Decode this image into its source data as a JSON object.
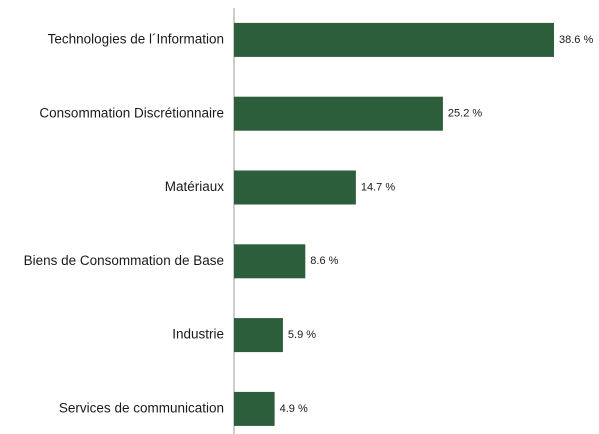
{
  "chart_data": {
    "type": "bar",
    "orientation": "horizontal",
    "categories": [
      "Technologies de l´Information",
      "Consommation Discrétionnaire",
      "Matériaux",
      "Biens de Consommation de Base",
      "Industrie",
      "Services de communication"
    ],
    "values": [
      38.6,
      25.2,
      14.7,
      8.6,
      5.9,
      4.9
    ],
    "value_labels": [
      "38.6 %",
      "25.2 %",
      "14.7 %",
      "8.6 %",
      "5.9 %",
      "4.9 %"
    ],
    "color": "#2c5e3b"
  }
}
